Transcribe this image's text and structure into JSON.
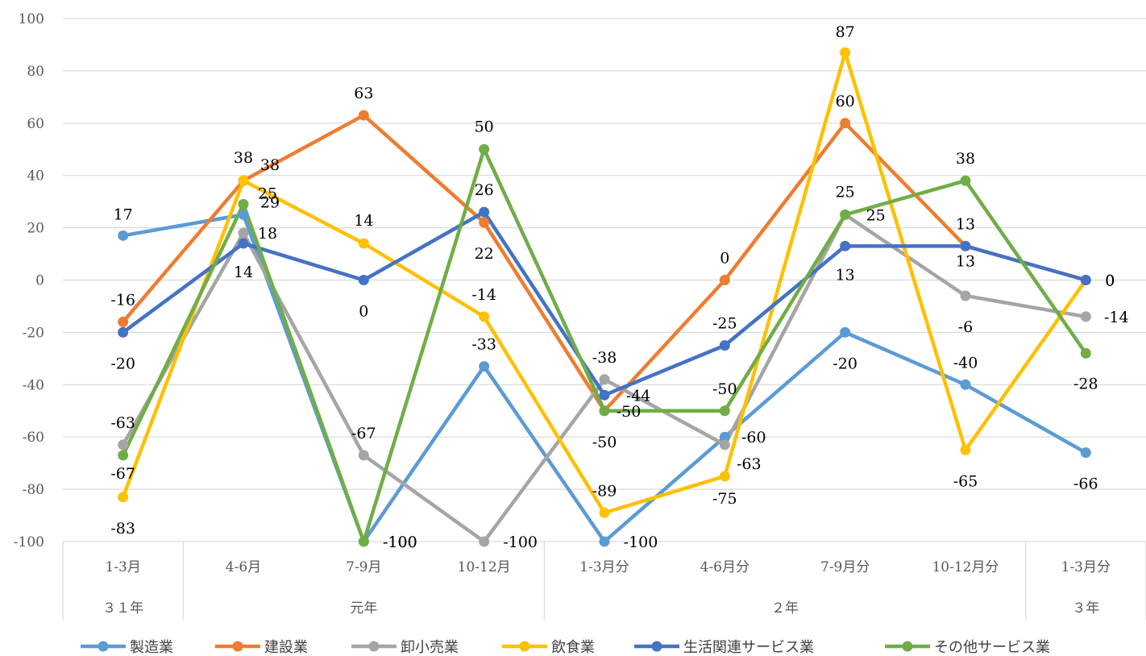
{
  "chart_data": {
    "type": "line",
    "categories": [
      "1-3月",
      "4-6月",
      "7-9月",
      "10-12月",
      "1-3月分",
      "4-6月分",
      "7-9月分",
      "10-12月分",
      "1-3月分"
    ],
    "groups": [
      {
        "label": "３１年",
        "span": 1
      },
      {
        "label": "元年",
        "span": 3
      },
      {
        "label": "２年",
        "span": 4
      },
      {
        "label": "３年",
        "span": 1
      }
    ],
    "ylim": [
      -100,
      100
    ],
    "yticks": [
      100,
      80,
      60,
      40,
      20,
      0,
      -20,
      -40,
      -60,
      -80,
      -100
    ],
    "grid": true,
    "legend_position": "bottom",
    "series": [
      {
        "name": "製造業",
        "color": "#5B9BD5",
        "values": [
          17,
          25,
          -100,
          -33,
          -100,
          -60,
          -20,
          -40,
          -66
        ]
      },
      {
        "name": "建設業",
        "color": "#ED7D31",
        "values": [
          -16,
          38,
          63,
          22,
          -50,
          0,
          60,
          13,
          0
        ]
      },
      {
        "name": "卸小売業",
        "color": "#A5A5A5",
        "values": [
          -63,
          18,
          -67,
          -100,
          -38,
          -63,
          25,
          -6,
          -14
        ]
      },
      {
        "name": "飲食業",
        "color": "#FFC000",
        "values": [
          -83,
          38,
          14,
          -14,
          -89,
          -75,
          87,
          -65,
          0
        ]
      },
      {
        "name": "生活関連サービス業",
        "color": "#4472C4",
        "values": [
          -20,
          14,
          0,
          26,
          -44,
          -25,
          13,
          13,
          0
        ]
      },
      {
        "name": "その他サービス業",
        "color": "#70AD47",
        "values": [
          -67,
          29,
          -100,
          50,
          -50,
          -50,
          25,
          38,
          -28
        ]
      }
    ],
    "data_labels": [
      {
        "series": 0,
        "point": 0,
        "text": "17"
      },
      {
        "series": 0,
        "point": 1,
        "text": "25"
      },
      {
        "series": 0,
        "point": 2,
        "text": "-100"
      },
      {
        "series": 0,
        "point": 3,
        "text": "-33"
      },
      {
        "series": 0,
        "point": 4,
        "text": "-100"
      },
      {
        "series": 0,
        "point": 5,
        "text": "-60"
      },
      {
        "series": 0,
        "point": 6,
        "text": "-20"
      },
      {
        "series": 0,
        "point": 7,
        "text": "-40"
      },
      {
        "series": 0,
        "point": 8,
        "text": "-66"
      },
      {
        "series": 1,
        "point": 0,
        "text": "-16"
      },
      {
        "series": 1,
        "point": 1,
        "text": "38"
      },
      {
        "series": 1,
        "point": 2,
        "text": "63"
      },
      {
        "series": 1,
        "point": 3,
        "text": "22"
      },
      {
        "series": 1,
        "point": 4,
        "text": "-50"
      },
      {
        "series": 1,
        "point": 5,
        "text": "0"
      },
      {
        "series": 1,
        "point": 6,
        "text": "60"
      },
      {
        "series": 1,
        "point": 7,
        "text": "13"
      },
      {
        "series": 1,
        "point": 8,
        "text": "0"
      },
      {
        "series": 2,
        "point": 0,
        "text": "-63"
      },
      {
        "series": 2,
        "point": 1,
        "text": "18"
      },
      {
        "series": 2,
        "point": 2,
        "text": "-67"
      },
      {
        "series": 2,
        "point": 3,
        "text": "-100"
      },
      {
        "series": 2,
        "point": 4,
        "text": "-38"
      },
      {
        "series": 2,
        "point": 5,
        "text": "-63"
      },
      {
        "series": 2,
        "point": 6,
        "text": "25"
      },
      {
        "series": 2,
        "point": 7,
        "text": "-6"
      },
      {
        "series": 2,
        "point": 8,
        "text": "-14"
      },
      {
        "series": 3,
        "point": 0,
        "text": "-83"
      },
      {
        "series": 3,
        "point": 1,
        "text": "38"
      },
      {
        "series": 3,
        "point": 2,
        "text": "14"
      },
      {
        "series": 3,
        "point": 3,
        "text": "-14"
      },
      {
        "series": 3,
        "point": 4,
        "text": "-89"
      },
      {
        "series": 3,
        "point": 5,
        "text": "-75"
      },
      {
        "series": 3,
        "point": 6,
        "text": "87"
      },
      {
        "series": 3,
        "point": 7,
        "text": "-65"
      },
      {
        "series": 3,
        "point": 8,
        "text": "0"
      },
      {
        "series": 4,
        "point": 0,
        "text": "-20"
      },
      {
        "series": 4,
        "point": 1,
        "text": "14"
      },
      {
        "series": 4,
        "point": 2,
        "text": "0"
      },
      {
        "series": 4,
        "point": 3,
        "text": "26"
      },
      {
        "series": 4,
        "point": 4,
        "text": "-44"
      },
      {
        "series": 4,
        "point": 5,
        "text": "-25"
      },
      {
        "series": 4,
        "point": 6,
        "text": "13"
      },
      {
        "series": 4,
        "point": 7,
        "text": "13"
      },
      {
        "series": 4,
        "point": 8,
        "text": "0"
      },
      {
        "series": 5,
        "point": 0,
        "text": "-67"
      },
      {
        "series": 5,
        "point": 1,
        "text": "29"
      },
      {
        "series": 5,
        "point": 2,
        "text": "-100"
      },
      {
        "series": 5,
        "point": 3,
        "text": "50"
      },
      {
        "series": 5,
        "point": 4,
        "text": "-50"
      },
      {
        "series": 5,
        "point": 5,
        "text": "-50"
      },
      {
        "series": 5,
        "point": 6,
        "text": "25"
      },
      {
        "series": 5,
        "point": 7,
        "text": "38"
      },
      {
        "series": 5,
        "point": 8,
        "text": "-28"
      }
    ]
  }
}
